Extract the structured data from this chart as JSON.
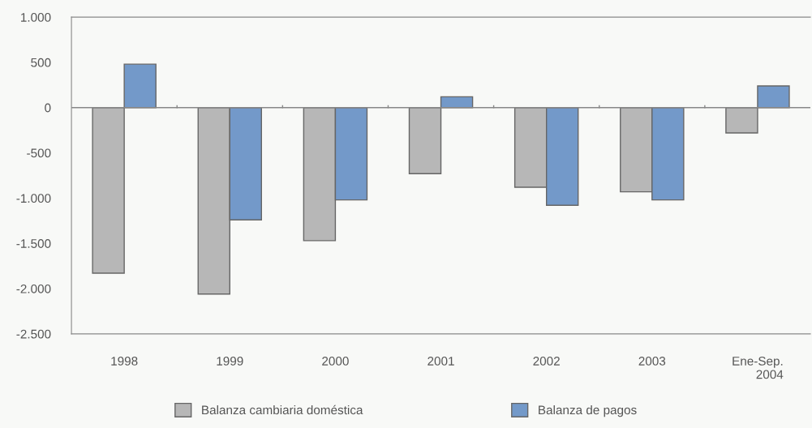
{
  "chart_data": {
    "type": "bar",
    "categories": [
      "1998",
      "1999",
      "2000",
      "2001",
      "2002",
      "2003",
      "Ene-Sep.\n2004"
    ],
    "series": [
      {
        "name": "Balanza cambiaria doméstica",
        "color": "#b7b7b7",
        "values": [
          -1830,
          -2060,
          -1470,
          -730,
          -880,
          -930,
          -280
        ]
      },
      {
        "name": "Balanza de pagos",
        "color": "#7399c9",
        "values": [
          480,
          -1240,
          -1020,
          120,
          -1080,
          -1020,
          240
        ]
      }
    ],
    "ylim": [
      -2500,
      1000
    ],
    "yticks": [
      {
        "value": 1000,
        "label": "1.000"
      },
      500,
      0,
      -500,
      {
        "value": -1000,
        "label": "-1.000"
      },
      {
        "value": -1500,
        "label": "-1.500"
      },
      {
        "value": -2000,
        "label": "-2.000"
      },
      {
        "value": -2500,
        "label": "-2.500"
      }
    ],
    "legend": "bottom"
  }
}
